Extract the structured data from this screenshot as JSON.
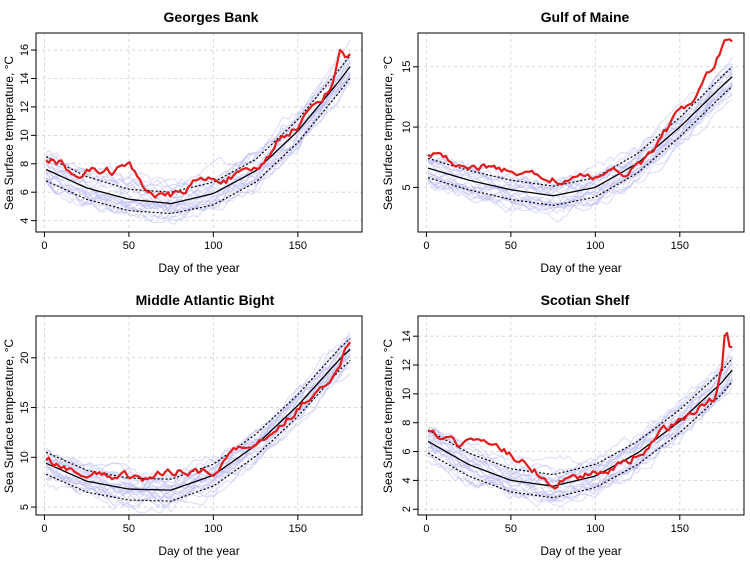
{
  "chart_data": [
    {
      "type": "line",
      "title": "Georges Bank",
      "xlabel": "Day of the year",
      "ylabel": "Sea Surface temperature, °C",
      "xlim": [
        -5,
        188
      ],
      "ylim": [
        3.2,
        17.2
      ],
      "xticks": [
        0,
        50,
        100,
        150
      ],
      "yticks": [
        4,
        6,
        8,
        10,
        12,
        14,
        16
      ],
      "grid": true,
      "series": [
        {
          "name": "individual years",
          "color": "#b9bdf2",
          "style": "thin-many"
        },
        {
          "name": "mean",
          "color": "#000000",
          "x": [
            1,
            25,
            50,
            75,
            100,
            125,
            150,
            175,
            182
          ],
          "values": [
            7.6,
            6.3,
            5.5,
            5.2,
            5.9,
            7.5,
            10.3,
            13.9,
            15.0
          ]
        },
        {
          "name": "upper bound",
          "color": "#000000",
          "dash": true,
          "x": [
            1,
            25,
            50,
            75,
            100,
            125,
            150,
            175,
            182
          ],
          "values": [
            8.5,
            7.1,
            6.2,
            6.0,
            6.7,
            8.3,
            11.1,
            14.7,
            15.8
          ]
        },
        {
          "name": "lower bound",
          "color": "#000000",
          "dash": true,
          "x": [
            1,
            25,
            50,
            75,
            100,
            125,
            150,
            175,
            182
          ],
          "values": [
            6.8,
            5.5,
            4.7,
            4.5,
            5.1,
            6.7,
            9.5,
            13.1,
            14.2
          ]
        },
        {
          "name": "current year",
          "color": "#e31b1b",
          "x": [
            1,
            10,
            20,
            30,
            40,
            50,
            60,
            70,
            80,
            90,
            100,
            110,
            120,
            130,
            140,
            150,
            160,
            170,
            175,
            178,
            182
          ],
          "values": [
            8.4,
            8.0,
            7.2,
            7.6,
            7.5,
            7.9,
            6.3,
            5.6,
            5.9,
            6.8,
            6.9,
            7.0,
            7.3,
            8.0,
            10.0,
            10.6,
            12.2,
            13.3,
            16.3,
            15.3,
            16.0
          ]
        }
      ]
    },
    {
      "type": "line",
      "title": "Gulf of Maine",
      "xlabel": "Day of the year",
      "ylabel": "Sea Surface temperature, °C",
      "xlim": [
        -5,
        188
      ],
      "ylim": [
        1.3,
        17.8
      ],
      "xticks": [
        0,
        50,
        100,
        150
      ],
      "yticks": [
        5,
        10,
        15
      ],
      "grid": true,
      "series": [
        {
          "name": "individual years",
          "color": "#b9bdf2",
          "style": "thin-many"
        },
        {
          "name": "mean",
          "color": "#000000",
          "x": [
            1,
            25,
            50,
            75,
            100,
            125,
            150,
            175,
            182
          ],
          "values": [
            6.6,
            5.6,
            4.8,
            4.3,
            5.0,
            7.0,
            10.0,
            13.4,
            14.3
          ]
        },
        {
          "name": "upper bound",
          "color": "#000000",
          "dash": true,
          "x": [
            1,
            25,
            50,
            75,
            100,
            125,
            150,
            175,
            182
          ],
          "values": [
            7.4,
            6.4,
            5.6,
            5.1,
            5.8,
            7.8,
            10.8,
            14.2,
            15.1
          ]
        },
        {
          "name": "lower bound",
          "color": "#000000",
          "dash": true,
          "x": [
            1,
            25,
            50,
            75,
            100,
            125,
            150,
            175,
            182
          ],
          "values": [
            5.8,
            4.8,
            4.0,
            3.5,
            4.2,
            6.2,
            9.2,
            12.6,
            13.5
          ]
        },
        {
          "name": "current year",
          "color": "#e31b1b",
          "x": [
            1,
            10,
            20,
            30,
            40,
            50,
            60,
            70,
            80,
            90,
            100,
            110,
            120,
            130,
            140,
            150,
            160,
            170,
            178,
            182
          ],
          "values": [
            7.9,
            7.3,
            7.0,
            6.7,
            6.5,
            6.4,
            6.1,
            5.8,
            5.6,
            5.7,
            5.9,
            6.1,
            6.4,
            7.3,
            9.5,
            11.2,
            12.6,
            15.1,
            17.3,
            16.9
          ]
        }
      ]
    },
    {
      "type": "line",
      "title": "Middle Atlantic Bight",
      "xlabel": "Day of the year",
      "ylabel": "Sea Surface temperature, °C",
      "xlim": [
        -5,
        188
      ],
      "ylim": [
        4.2,
        24.2
      ],
      "xticks": [
        0,
        50,
        100,
        150
      ],
      "yticks": [
        5,
        10,
        15,
        20
      ],
      "grid": true,
      "series": [
        {
          "name": "individual years",
          "color": "#b9bdf2",
          "style": "thin-many"
        },
        {
          "name": "mean",
          "color": "#000000",
          "x": [
            1,
            25,
            50,
            75,
            100,
            125,
            150,
            175,
            182
          ],
          "values": [
            9.4,
            7.6,
            6.8,
            6.7,
            8.2,
            11.2,
            15.2,
            19.9,
            21.0
          ]
        },
        {
          "name": "upper bound",
          "color": "#000000",
          "dash": true,
          "x": [
            1,
            25,
            50,
            75,
            100,
            125,
            150,
            175,
            182
          ],
          "values": [
            10.5,
            8.7,
            7.9,
            7.8,
            9.3,
            12.3,
            16.3,
            21.0,
            22.1
          ]
        },
        {
          "name": "lower bound",
          "color": "#000000",
          "dash": true,
          "x": [
            1,
            25,
            50,
            75,
            100,
            125,
            150,
            175,
            182
          ],
          "values": [
            8.3,
            6.5,
            5.7,
            5.6,
            7.1,
            10.1,
            14.1,
            18.8,
            19.9
          ]
        },
        {
          "name": "current year",
          "color": "#e31b1b",
          "x": [
            1,
            10,
            20,
            30,
            40,
            50,
            60,
            70,
            80,
            90,
            100,
            110,
            120,
            130,
            140,
            150,
            160,
            170,
            175,
            182
          ],
          "values": [
            9.8,
            9.3,
            8.6,
            8.2,
            8.0,
            8.2,
            7.9,
            8.3,
            8.8,
            8.6,
            8.4,
            10.5,
            11.2,
            12.0,
            13.2,
            15.0,
            16.5,
            18.2,
            19.6,
            21.9
          ]
        }
      ]
    },
    {
      "type": "line",
      "title": "Scotian Shelf",
      "xlabel": "Day of the year",
      "ylabel": "Sea Surface temperature, °C",
      "xlim": [
        -5,
        188
      ],
      "ylim": [
        1.6,
        15.4
      ],
      "xticks": [
        0,
        50,
        100,
        150
      ],
      "yticks": [
        2,
        4,
        6,
        8,
        10,
        12,
        14
      ],
      "grid": true,
      "series": [
        {
          "name": "individual years",
          "color": "#b9bdf2",
          "style": "thin-many"
        },
        {
          "name": "mean",
          "color": "#000000",
          "x": [
            1,
            25,
            50,
            75,
            100,
            125,
            150,
            175,
            182
          ],
          "values": [
            6.7,
            5.1,
            4.0,
            3.6,
            4.3,
            5.9,
            8.1,
            10.8,
            11.8
          ]
        },
        {
          "name": "upper bound",
          "color": "#000000",
          "dash": true,
          "x": [
            1,
            25,
            50,
            75,
            100,
            125,
            150,
            175,
            182
          ],
          "values": [
            7.5,
            5.9,
            4.8,
            4.4,
            5.1,
            6.7,
            8.9,
            11.6,
            12.6
          ]
        },
        {
          "name": "lower bound",
          "color": "#000000",
          "dash": true,
          "x": [
            1,
            25,
            50,
            75,
            100,
            125,
            150,
            175,
            182
          ],
          "values": [
            5.9,
            4.3,
            3.2,
            2.8,
            3.5,
            5.1,
            7.3,
            10.0,
            11.0
          ]
        },
        {
          "name": "current year",
          "color": "#e31b1b",
          "x": [
            1,
            10,
            20,
            30,
            40,
            50,
            60,
            70,
            75,
            80,
            90,
            100,
            110,
            120,
            130,
            140,
            150,
            160,
            170,
            175,
            177,
            179,
            182
          ],
          "values": [
            7.3,
            6.8,
            6.5,
            6.5,
            6.2,
            5.8,
            5.1,
            4.1,
            3.5,
            4.2,
            4.2,
            4.6,
            4.8,
            5.4,
            6.2,
            7.5,
            8.0,
            8.9,
            9.6,
            11.7,
            14.9,
            13.3,
            13.4
          ]
        }
      ]
    }
  ]
}
